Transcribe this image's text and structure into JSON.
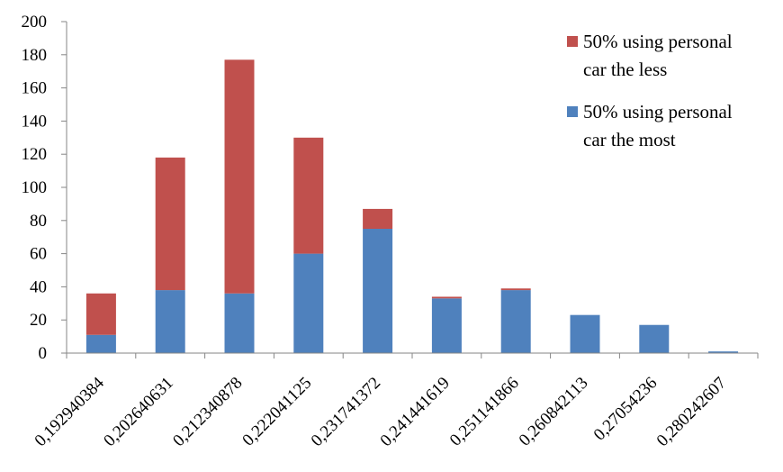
{
  "chart_data": {
    "type": "bar",
    "stacked": true,
    "categories": [
      "0,192940384",
      "0,202640631",
      "0,212340878",
      "0,222041125",
      "0,231741372",
      "0,241441619",
      "0,251141866",
      "0,260842113",
      "0,27054236",
      "0,280242607"
    ],
    "series": [
      {
        "name": "50% using personal car the most",
        "color": "#4f81bd",
        "values": [
          11,
          38,
          36,
          60,
          75,
          33,
          38,
          23,
          17,
          1
        ]
      },
      {
        "name": "50% using personal car the less",
        "color": "#c0504d",
        "values": [
          25,
          80,
          141,
          70,
          12,
          1,
          1,
          0,
          0,
          0
        ]
      }
    ],
    "ylim": [
      0,
      200
    ],
    "yticks": [
      0,
      20,
      40,
      60,
      80,
      100,
      120,
      140,
      160,
      180,
      200
    ],
    "grid": false,
    "legend": {
      "position": "top-right",
      "entries": [
        {
          "line1": "50% using personal",
          "line2": "car the less",
          "color": "#c0504d"
        },
        {
          "line1": "50% using personal",
          "line2": "car the most",
          "color": "#4f81bd"
        }
      ]
    },
    "title": "",
    "xlabel": "",
    "ylabel": ""
  }
}
